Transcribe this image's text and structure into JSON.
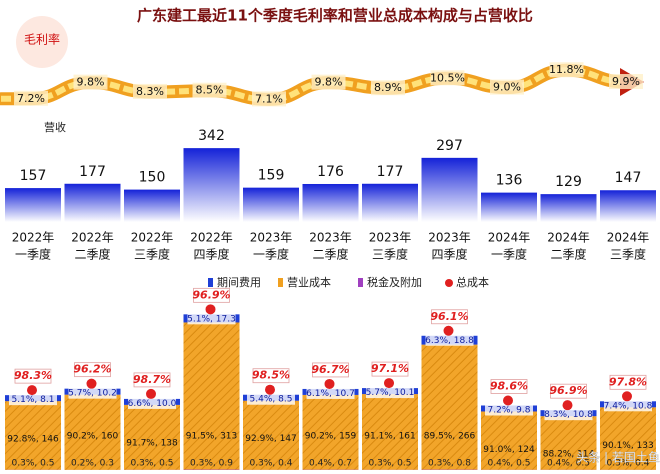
{
  "title": "广东建工最近11个季度毛利率和营业总成本构成与占营收比",
  "watermark": "头条 | 若国土鱼",
  "chart_data": [
    {
      "type": "line",
      "name": "毛利率",
      "color": "#f0a020",
      "values": [
        7.2,
        9.8,
        8.3,
        8.5,
        7.1,
        9.8,
        8.9,
        10.5,
        9.0,
        11.8,
        9.9
      ],
      "value_labels": [
        "7.2%",
        "9.8%",
        "8.3%",
        "8.5%",
        "7.1%",
        "9.8%",
        "8.9%",
        "10.5%",
        "9.0%",
        "11.8%",
        "9.9%"
      ]
    },
    {
      "type": "bar",
      "name": "营收",
      "color": "#1a2ee0",
      "years": [
        "2022年",
        "2022年",
        "2022年",
        "2022年",
        "2023年",
        "2023年",
        "2023年",
        "2023年",
        "2024年",
        "2024年",
        "2024年"
      ],
      "quarters": [
        "一季度",
        "二季度",
        "三季度",
        "四季度",
        "一季度",
        "二季度",
        "三季度",
        "四季度",
        "一季度",
        "二季度",
        "三季度"
      ],
      "values": [
        157,
        177,
        150,
        342,
        159,
        176,
        177,
        297,
        136,
        129,
        147
      ]
    },
    {
      "type": "stacked_bar",
      "series": [
        {
          "name": "期间费用",
          "color": "#1f3fd6",
          "values": [
            8.1,
            10.2,
            10.0,
            17.3,
            8.5,
            10.7,
            10.1,
            18.8,
            9.8,
            10.8,
            10.8
          ],
          "value_labels": [
            "5.1%, 8.1",
            "5.7%, 10.2",
            "6.6%, 10.0",
            "5.1%, 17.3",
            "5.4%, 8.5",
            "6.1%, 10.7",
            "5.7%, 10.1",
            "6.3%, 18.8",
            "7.2%, 9.8",
            "8.3%, 10.8",
            "7.4%, 10.8"
          ]
        },
        {
          "name": "营业成本",
          "color": "#f0a020",
          "values": [
            146,
            160,
            138,
            313,
            147,
            159,
            161,
            266,
            124,
            114,
            133
          ],
          "value_labels": [
            "92.8%, 146",
            "90.2%, 160",
            "91.7%, 138",
            "91.5%, 313",
            "92.9%, 147",
            "90.2%, 159",
            "91.1%, 161",
            "89.5%, 266",
            "91.0%, 124",
            "88.2%, 114",
            "90.1%, 133"
          ]
        },
        {
          "name": "税金及附加",
          "color": "#a040c0",
          "values": [
            0.5,
            0.3,
            0.5,
            0.9,
            0.4,
            0.7,
            0.5,
            0.8,
            0.5,
            0.5,
            0.4
          ],
          "value_labels": [
            "0.3%, 0.5",
            "0.2%, 0.3",
            "0.3%, 0.5",
            "0.3%, 0.9",
            "0.3%, 0.4",
            "0.4%, 0.7",
            "0.3%, 0.5",
            "0.3%, 0.8",
            "0.4%, 0.5",
            "0.4%, 0.5",
            "0.3%, 0.4"
          ]
        }
      ],
      "total": {
        "name": "总成本",
        "color": "#e02020",
        "values": [
          98.3,
          96.2,
          98.7,
          96.9,
          98.5,
          96.7,
          97.1,
          96.1,
          98.6,
          96.9,
          97.8
        ],
        "value_labels": [
          "98.3%",
          "96.2%",
          "98.7%",
          "96.9%",
          "98.5%",
          "96.7%",
          "97.1%",
          "96.1%",
          "98.6%",
          "96.9%",
          "97.8%"
        ]
      }
    }
  ]
}
